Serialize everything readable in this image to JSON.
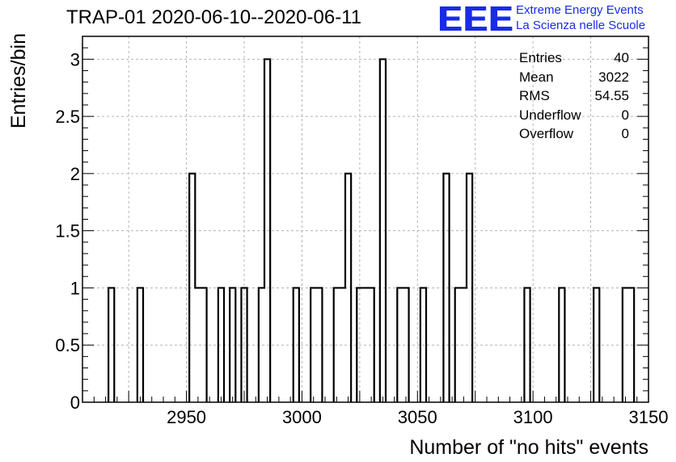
{
  "title": "TRAP-01 2020-06-10--2020-06-11",
  "logo": {
    "mark": "EEE",
    "line1": "Extreme Energy Events",
    "line2": "La Scienza nelle Scuole",
    "color": "#1a2be8"
  },
  "stats": [
    {
      "label": "Entries",
      "value": "40"
    },
    {
      "label": "Mean",
      "value": "3022"
    },
    {
      "label": "RMS",
      "value": "54.55"
    },
    {
      "label": "Underflow",
      "value": "0"
    },
    {
      "label": "Overflow",
      "value": "0"
    }
  ],
  "chart_data": {
    "type": "bar",
    "xlabel": "Number of \"no hits\" events",
    "ylabel": "Entries/bin",
    "xlim": [
      2905,
      3150
    ],
    "ylim": [
      0,
      3.2
    ],
    "bin_width": 2.5,
    "xticks": [
      "2950",
      "3000",
      "3050",
      "3100",
      "3150"
    ],
    "yticks": [
      "0",
      "0.5",
      "1",
      "1.5",
      "2",
      "2.5",
      "3"
    ],
    "grid": true,
    "line_color": "#000000",
    "bins": [
      {
        "x": 2917.5,
        "y": 1
      },
      {
        "x": 2930,
        "y": 1
      },
      {
        "x": 2952.5,
        "y": 2
      },
      {
        "x": 2955,
        "y": 1
      },
      {
        "x": 2957.5,
        "y": 1
      },
      {
        "x": 2965,
        "y": 1
      },
      {
        "x": 2970,
        "y": 1
      },
      {
        "x": 2975,
        "y": 1
      },
      {
        "x": 2982.5,
        "y": 1
      },
      {
        "x": 2985,
        "y": 3
      },
      {
        "x": 2997.5,
        "y": 1
      },
      {
        "x": 3005,
        "y": 1
      },
      {
        "x": 3007.5,
        "y": 1
      },
      {
        "x": 3015,
        "y": 1
      },
      {
        "x": 3017.5,
        "y": 1
      },
      {
        "x": 3020,
        "y": 2
      },
      {
        "x": 3025,
        "y": 1
      },
      {
        "x": 3027.5,
        "y": 1
      },
      {
        "x": 3030,
        "y": 1
      },
      {
        "x": 3035,
        "y": 3
      },
      {
        "x": 3042.5,
        "y": 1
      },
      {
        "x": 3045,
        "y": 1
      },
      {
        "x": 3052.5,
        "y": 1
      },
      {
        "x": 3062.5,
        "y": 2
      },
      {
        "x": 3067.5,
        "y": 1
      },
      {
        "x": 3070,
        "y": 1
      },
      {
        "x": 3072.5,
        "y": 2
      },
      {
        "x": 3097.5,
        "y": 1
      },
      {
        "x": 3112.5,
        "y": 1
      },
      {
        "x": 3127.5,
        "y": 1
      },
      {
        "x": 3140,
        "y": 1
      },
      {
        "x": 3142.5,
        "y": 1
      }
    ]
  }
}
